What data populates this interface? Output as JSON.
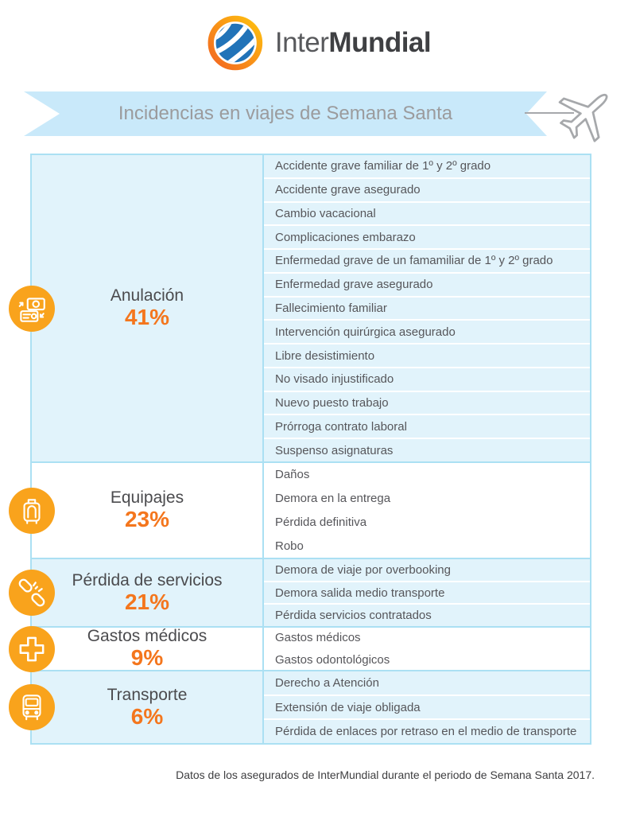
{
  "logo": {
    "inter": "Inter",
    "mundial": "Mundial"
  },
  "banner": {
    "title": "Incidencias en viajes de Semana Santa"
  },
  "colors": {
    "accent_orange": "#F4761D",
    "icon_orange": "#F9A31C",
    "ribbon_blue": "#C9E9FA",
    "section_blue": "#E1F3FB",
    "border_cyan": "#ABE0F3",
    "logo_blue": "#2173B8",
    "text_dark": "#4B4B4E",
    "text_gray": "#56565A"
  },
  "sections": [
    {
      "category": "Anulación",
      "percent": "41%",
      "icon": "tickets-icon",
      "items": [
        "Accidente grave familiar de 1º y 2º grado",
        "Accidente grave asegurado",
        "Cambio vacacional",
        "Complicaciones embarazo",
        "Enfermedad grave de un famamiliar de 1º y 2º grado",
        "Enfermedad grave asegurado",
        "Fallecimiento familiar",
        "Intervención quirúrgica asegurado",
        "Libre desistimiento",
        "No visado injustificado",
        "Nuevo puesto trabajo",
        "Prórroga contrato laboral",
        "Suspenso asignaturas"
      ]
    },
    {
      "category": "Equipajes",
      "percent": "23%",
      "icon": "suitcase-icon",
      "items": [
        "Daños",
        "Demora en la entrega",
        "Pérdida definitiva",
        "Robo"
      ]
    },
    {
      "category": "Pérdida de servicios",
      "percent": "21%",
      "icon": "broken-link-icon",
      "items": [
        "Demora de viaje por overbooking",
        "Demora salida medio transporte",
        "Pérdida servicios contratados"
      ]
    },
    {
      "category": "Gastos médicos",
      "percent": "9%",
      "icon": "medical-cross-icon",
      "items": [
        "Gastos médicos",
        "Gastos odontológicos"
      ]
    },
    {
      "category": "Transporte",
      "percent": "6%",
      "icon": "bus-icon",
      "items": [
        "Derecho a Atención",
        "Extensión de viaje obligada",
        "Pérdida de enlaces por retraso en el medio de transporte"
      ]
    }
  ],
  "footer": {
    "note": "Datos de los asegurados de InterMundial durante el periodo de Semana Santa 2017."
  }
}
